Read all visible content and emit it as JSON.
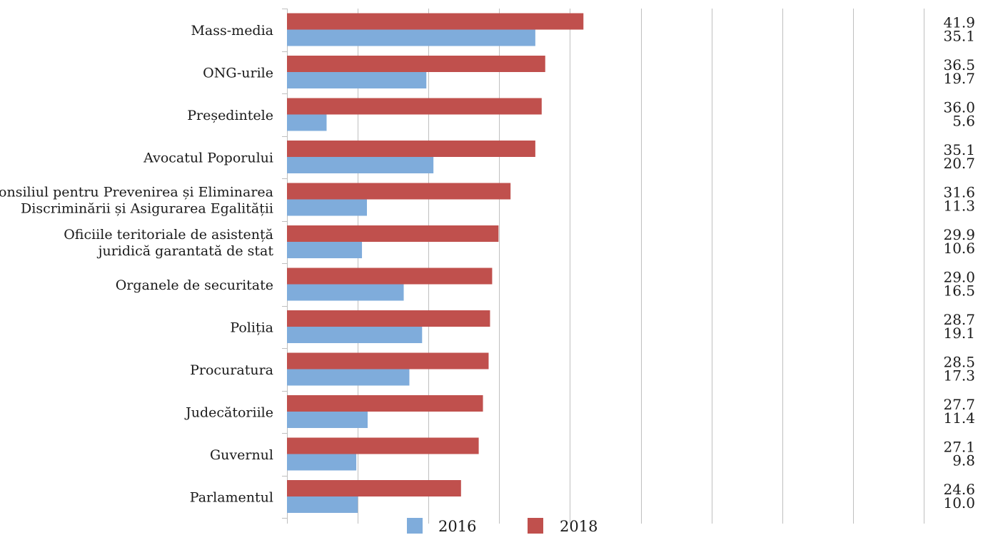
{
  "chart_data": {
    "type": "bar",
    "orientation": "horizontal",
    "categories": [
      [
        "Mass-media"
      ],
      [
        "ONG-urile"
      ],
      [
        "Președintele"
      ],
      [
        "Avocatul Poporului"
      ],
      [
        "Consiliul pentru Prevenirea și Eliminarea",
        "Discriminării și Asigurarea Egalității"
      ],
      [
        "Oficiile teritoriale de asistență",
        "juridică garantată de stat"
      ],
      [
        "Organele de securitate"
      ],
      [
        "Poliția"
      ],
      [
        "Procuratura"
      ],
      [
        "Judecătoriile"
      ],
      [
        "Guvernul"
      ],
      [
        "Parlamentul"
      ]
    ],
    "series": [
      {
        "name": "2018",
        "color": "#c0504d",
        "values": [
          41.9,
          36.5,
          36.0,
          35.1,
          31.6,
          29.9,
          29.0,
          28.7,
          28.5,
          27.7,
          27.1,
          24.6
        ],
        "labels": [
          "41.9",
          "36.5",
          "36.0",
          "35.1",
          "31.6",
          "29.9",
          "29.0",
          "28.7",
          "28.5",
          "27.7",
          "27.1",
          "24.6"
        ]
      },
      {
        "name": "2016",
        "color": "#7facdb",
        "values": [
          35.1,
          19.7,
          5.6,
          20.7,
          11.3,
          10.6,
          16.5,
          19.1,
          17.3,
          11.4,
          9.8,
          10.0
        ],
        "labels": [
          "35.1",
          "19.7",
          "5.6",
          "20.7",
          "11.3",
          "10.6",
          "16.5",
          "19.1",
          "17.3",
          "11.4",
          "9.8",
          "10.0"
        ]
      }
    ],
    "xlim": [
      0,
      90
    ],
    "grid": true,
    "legend": {
      "position": "bottom",
      "order": [
        "2016",
        "2018"
      ]
    },
    "axis_color": "#bfbfbf"
  }
}
